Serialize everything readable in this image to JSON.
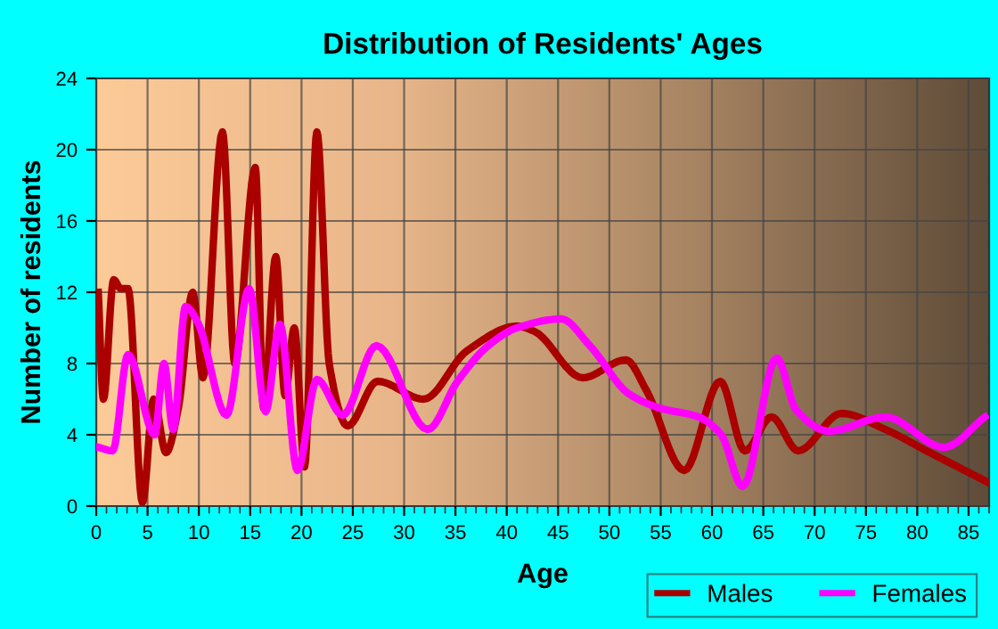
{
  "chart_data": {
    "type": "line",
    "title": "Distribution of Residents' Ages",
    "xlabel": "Age",
    "ylabel": "Number of residents",
    "xlim": [
      0,
      87
    ],
    "xticks": [
      0,
      5,
      10,
      15,
      20,
      25,
      30,
      35,
      40,
      45,
      50,
      55,
      60,
      65,
      70,
      75,
      80,
      85
    ],
    "ylim": [
      0,
      24
    ],
    "yticks": [
      0,
      4,
      8,
      12,
      16,
      20,
      24
    ],
    "grid": true,
    "legend": "bottom right",
    "marker": "none",
    "line_style": "solid",
    "series": [
      {
        "name": "Males",
        "color": "#aa0000",
        "x": [
          0.2,
          0.7,
          1.7,
          2.4,
          3.1,
          4.5,
          5.6,
          6.8,
          8,
          9.4,
          10.4,
          12.3,
          13.5,
          15.5,
          16.3,
          17.5,
          18.4,
          19.3,
          20.3,
          21.5,
          22.7,
          24.5,
          27.4,
          31.9,
          36.1,
          41,
          42.7,
          47.4,
          51.6,
          53.6,
          57.3,
          60.8,
          63.2,
          65.8,
          68.4,
          72.6,
          76.9,
          80.9,
          87
        ],
        "values": [
          12,
          6,
          12.7,
          12.2,
          12.2,
          0.2,
          6,
          3,
          5.5,
          12,
          7.2,
          21,
          8,
          19,
          5.5,
          14,
          6.2,
          10,
          2.2,
          21,
          8,
          4.5,
          7,
          6,
          8.7,
          10.1,
          9.8,
          7.2,
          8.2,
          6.5,
          2,
          7,
          3.1,
          5,
          3.1,
          5.2,
          4.3,
          3.1,
          1.3
        ]
      },
      {
        "name": "Females",
        "color": "#ff00ff",
        "x": [
          0.2,
          1.6,
          3.1,
          5.7,
          6.6,
          7.5,
          8.7,
          9.9,
          12.7,
          14.9,
          16.5,
          17.9,
          19.6,
          21.5,
          24,
          27.3,
          32.3,
          35.2,
          38.2,
          41,
          45.3,
          48.1,
          51.9,
          54.9,
          58.7,
          60.9,
          63,
          66.3,
          68.2,
          71.4,
          76.9,
          82.6,
          86.6
        ],
        "values": [
          3.3,
          3.1,
          8.5,
          4,
          8,
          4.3,
          11.2,
          10.3,
          5.1,
          12.2,
          5.3,
          10.2,
          2,
          7.1,
          5.1,
          9,
          4.3,
          7,
          9,
          10,
          10.5,
          9,
          6.3,
          5.5,
          5,
          4,
          1.1,
          8.3,
          5.4,
          4.2,
          5,
          3.3,
          5
        ]
      }
    ]
  }
}
